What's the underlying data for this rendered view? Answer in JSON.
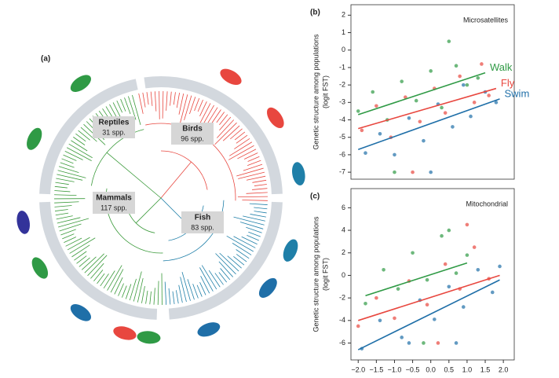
{
  "panel_a": {
    "label": "(a)",
    "clades": [
      {
        "name": "Reptiles",
        "count": "31 spp."
      },
      {
        "name": "Birds",
        "count": "96 spp."
      },
      {
        "name": "Mammals",
        "count": "117 spp."
      },
      {
        "name": "Fish",
        "count": "83 spp."
      }
    ]
  },
  "chart_data": [
    {
      "type": "scatter",
      "panel": "(b)",
      "title": "Microsatellites",
      "ylabel": "Genetic structure among populations",
      "ylabel2": "(logit FST)",
      "xlim": [
        -2.2,
        2.3
      ],
      "ylim": [
        -7.4,
        2.6
      ],
      "yticks": [
        -7,
        -6,
        -5,
        -4,
        -3,
        -2,
        -1,
        0,
        1,
        2
      ],
      "series": [
        {
          "name": "Walk",
          "color": "#2f9a45",
          "x": [
            -2.0,
            -1.6,
            -1.2,
            -0.8,
            -0.4,
            0.0,
            0.3,
            0.7,
            1.0,
            1.3,
            -1.0,
            0.5
          ],
          "values": [
            -3.5,
            -2.4,
            -4.0,
            -1.8,
            -2.9,
            -1.2,
            -3.3,
            -0.9,
            -2.0,
            -1.6,
            -7,
            0.5
          ],
          "fit": {
            "x": [
              -2,
              1.5
            ],
            "values": [
              -3.7,
              -1.3
            ]
          }
        },
        {
          "name": "Fly",
          "color": "#e8473f",
          "x": [
            -1.9,
            -1.5,
            -1.1,
            -0.7,
            -0.3,
            0.1,
            0.4,
            0.8,
            1.2,
            1.6,
            -0.5,
            1.4
          ],
          "values": [
            -4.6,
            -3.2,
            -5.0,
            -2.7,
            -4.1,
            -2.2,
            -3.6,
            -1.5,
            -3.0,
            -2.6,
            -7,
            -0.8
          ],
          "fit": {
            "x": [
              -2,
              1.8
            ],
            "values": [
              -4.5,
              -2.2
            ]
          }
        },
        {
          "name": "Swim",
          "color": "#1f6fa8",
          "x": [
            -1.8,
            -1.4,
            -1.0,
            -0.6,
            -0.2,
            0.2,
            0.6,
            0.9,
            1.1,
            1.5,
            1.8,
            0.0
          ],
          "values": [
            -5.9,
            -4.8,
            -6.0,
            -3.9,
            -5.2,
            -3.1,
            -4.4,
            -2.0,
            -3.8,
            -2.4,
            -3.0,
            -7
          ],
          "fit": {
            "x": [
              -2,
              1.9
            ],
            "values": [
              -5.7,
              -2.8
            ]
          }
        }
      ]
    },
    {
      "type": "scatter",
      "panel": "(c)",
      "title": "Mitochondrial",
      "ylabel": "Genetic structure among populations",
      "ylabel2": "(logit FST)",
      "xlim": [
        -2.2,
        2.3
      ],
      "ylim": [
        -7.5,
        7.7
      ],
      "yticks": [
        -6,
        -4,
        -2,
        0,
        2,
        4,
        6
      ],
      "xticks": [
        {
          "value": -2,
          "label": "−2.0"
        },
        {
          "value": -1.5,
          "label": "−1.5"
        },
        {
          "value": -1,
          "label": "−1.0"
        },
        {
          "value": -0.5,
          "label": "−0.5"
        },
        {
          "value": 0,
          "label": "0.0"
        },
        0.5,
        {
          "value": 1,
          "label": "1.0"
        },
        1.5,
        {
          "value": 2,
          "label": "2.0"
        }
      ],
      "series": [
        {
          "color": "#2f9a45",
          "x": [
            -1.8,
            -1.3,
            -0.9,
            -0.5,
            -0.1,
            0.3,
            0.7,
            1.0,
            -0.2,
            0.5
          ],
          "values": [
            -2.5,
            0.5,
            -1.2,
            2.0,
            -0.4,
            3.5,
            0.2,
            1.8,
            -6,
            4.0
          ],
          "fit": {
            "x": [
              -1.8,
              1
            ],
            "values": [
              -1.8,
              1.1
            ]
          }
        },
        {
          "color": "#e8473f",
          "x": [
            -2.0,
            -1.5,
            -1.0,
            -0.6,
            -0.1,
            0.4,
            0.8,
            1.2,
            1.6,
            0.2,
            1.0
          ],
          "values": [
            -4.5,
            -2.0,
            -3.8,
            -0.5,
            -2.6,
            1.0,
            -1.2,
            2.5,
            -0.3,
            -6,
            4.5
          ],
          "fit": {
            "x": [
              -2,
              1.9
            ],
            "values": [
              -4,
              0
            ]
          }
        },
        {
          "color": "#1f6fa8",
          "x": [
            -1.9,
            -1.4,
            -0.8,
            -0.3,
            0.1,
            0.5,
            0.9,
            1.3,
            1.7,
            1.9,
            -0.6,
            0.7
          ],
          "values": [
            -6.5,
            -4.0,
            -5.5,
            -2.2,
            -3.9,
            -1.0,
            -2.8,
            0.5,
            -1.5,
            0.8,
            -6,
            -6
          ],
          "fit": {
            "x": [
              -2,
              1.9
            ],
            "values": [
              -6.6,
              -0.4
            ]
          }
        }
      ]
    }
  ]
}
